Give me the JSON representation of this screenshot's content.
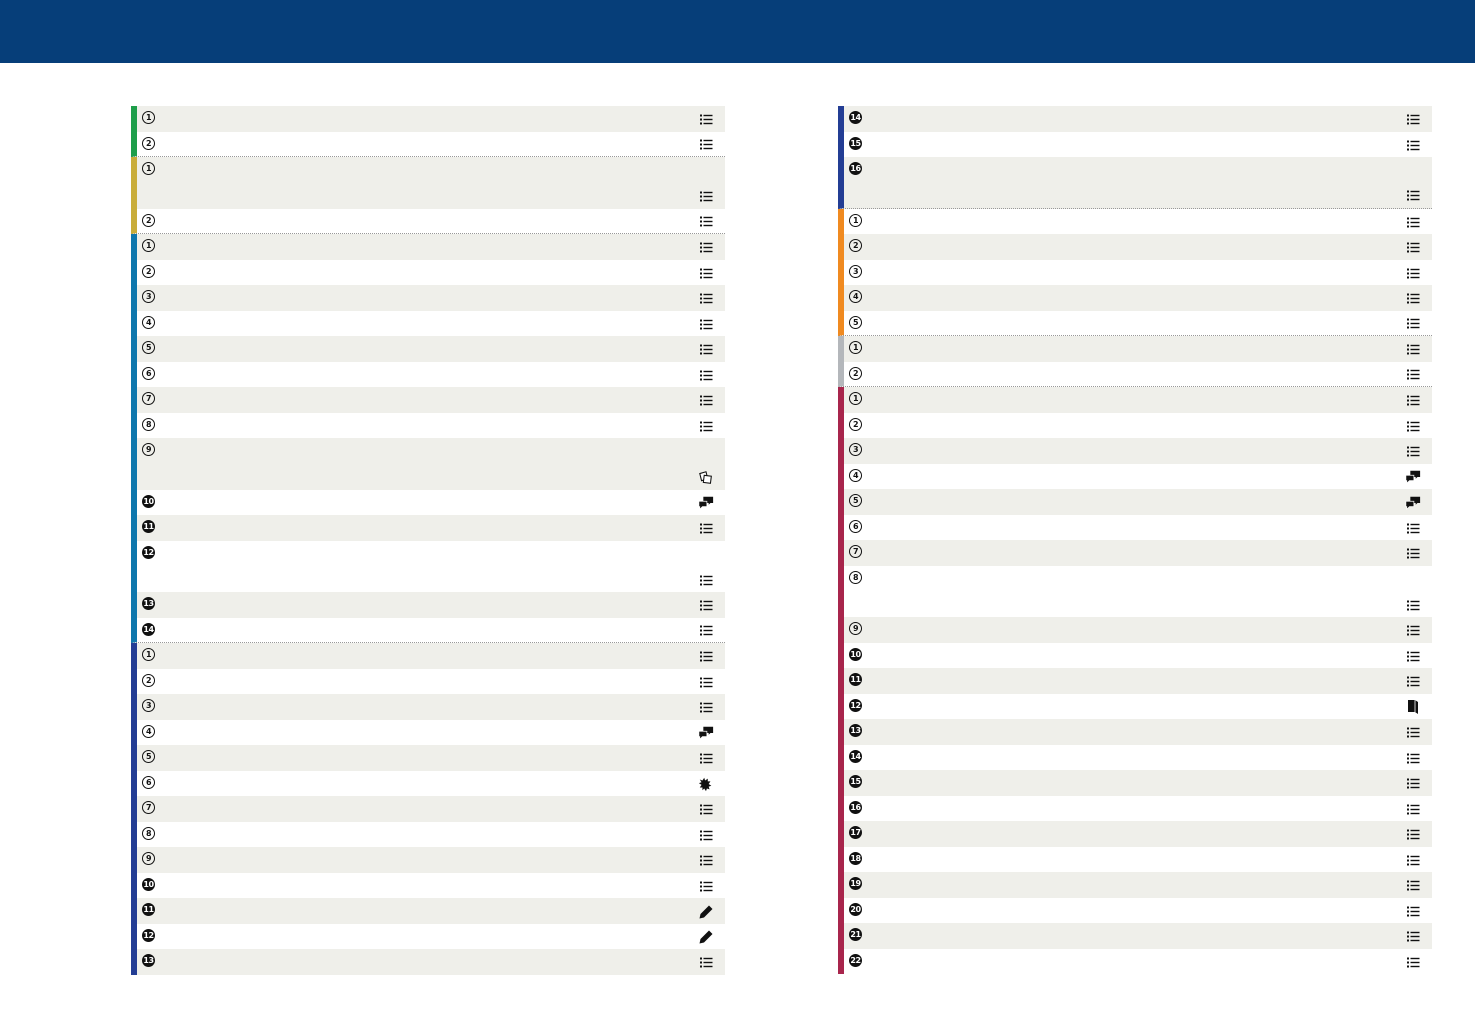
{
  "colors": {
    "header": "#063e79",
    "row_shade": "#efefea",
    "green": "#1e9e4a",
    "gold": "#c9ad3a",
    "teal": "#0e77ad",
    "navy": "#233d94",
    "orange": "#f08a20",
    "grey": "#b4b7bb",
    "crimson": "#a8254c"
  },
  "columns": [
    {
      "id": "left",
      "groups": [
        {
          "color": "green",
          "rows": [
            {
              "n": "1",
              "icon": "list-icon"
            },
            {
              "n": "2",
              "icon": "list-icon"
            }
          ]
        },
        {
          "color": "gold",
          "rows": [
            {
              "n": "1",
              "icon": "list-icon",
              "tall": true
            },
            {
              "n": "2",
              "icon": "list-icon"
            }
          ]
        },
        {
          "color": "teal",
          "rows": [
            {
              "n": "1",
              "icon": "list-icon"
            },
            {
              "n": "2",
              "icon": "list-icon"
            },
            {
              "n": "3",
              "icon": "list-icon"
            },
            {
              "n": "4",
              "icon": "list-icon"
            },
            {
              "n": "5",
              "icon": "list-icon"
            },
            {
              "n": "6",
              "icon": "list-icon"
            },
            {
              "n": "7",
              "icon": "list-icon"
            },
            {
              "n": "8",
              "icon": "list-icon"
            },
            {
              "n": "9",
              "icon": "cards-icon",
              "tall": true
            },
            {
              "n": "10",
              "icon": "speech-bubbles-icon",
              "filled": true
            },
            {
              "n": "11",
              "icon": "list-icon",
              "filled": true
            },
            {
              "n": "12",
              "icon": "list-icon",
              "filled": true,
              "tall": true
            },
            {
              "n": "13",
              "icon": "list-icon",
              "filled": true
            },
            {
              "n": "14",
              "icon": "list-icon",
              "filled": true
            }
          ]
        },
        {
          "color": "navy",
          "rows": [
            {
              "n": "1",
              "icon": "list-icon"
            },
            {
              "n": "2",
              "icon": "list-icon"
            },
            {
              "n": "3",
              "icon": "list-icon"
            },
            {
              "n": "4",
              "icon": "speech-bubbles-icon"
            },
            {
              "n": "5",
              "icon": "list-icon"
            },
            {
              "n": "6",
              "icon": "dragon-icon"
            },
            {
              "n": "7",
              "icon": "list-icon"
            },
            {
              "n": "8",
              "icon": "list-icon"
            },
            {
              "n": "9",
              "icon": "list-icon"
            },
            {
              "n": "10",
              "icon": "list-icon",
              "filled": true
            },
            {
              "n": "11",
              "icon": "pencil-icon",
              "filled": true
            },
            {
              "n": "12",
              "icon": "pencil-icon",
              "filled": true
            },
            {
              "n": "13",
              "icon": "list-icon",
              "filled": true
            }
          ]
        }
      ]
    },
    {
      "id": "right",
      "groups": [
        {
          "color": "navy",
          "rows": [
            {
              "n": "14",
              "icon": "list-icon",
              "filled": true
            },
            {
              "n": "15",
              "icon": "list-icon",
              "filled": true
            },
            {
              "n": "16",
              "icon": "list-icon",
              "filled": true,
              "tall": true
            }
          ]
        },
        {
          "color": "orange",
          "rows": [
            {
              "n": "1",
              "icon": "list-icon"
            },
            {
              "n": "2",
              "icon": "list-icon"
            },
            {
              "n": "3",
              "icon": "list-icon"
            },
            {
              "n": "4",
              "icon": "list-icon"
            },
            {
              "n": "5",
              "icon": "list-icon"
            }
          ]
        },
        {
          "color": "grey",
          "rows": [
            {
              "n": "1",
              "icon": "list-icon"
            },
            {
              "n": "2",
              "icon": "list-icon"
            }
          ]
        },
        {
          "color": "crimson",
          "rows": [
            {
              "n": "1",
              "icon": "list-icon"
            },
            {
              "n": "2",
              "icon": "list-icon"
            },
            {
              "n": "3",
              "icon": "list-icon"
            },
            {
              "n": "4",
              "icon": "speech-bubbles-icon"
            },
            {
              "n": "5",
              "icon": "speech-bubbles-icon"
            },
            {
              "n": "6",
              "icon": "list-icon"
            },
            {
              "n": "7",
              "icon": "list-icon"
            },
            {
              "n": "8",
              "icon": "list-icon",
              "tall": true
            },
            {
              "n": "9",
              "icon": "list-icon"
            },
            {
              "n": "10",
              "icon": "list-icon",
              "filled": true
            },
            {
              "n": "11",
              "icon": "list-icon",
              "filled": true
            },
            {
              "n": "12",
              "icon": "book-icon",
              "filled": true
            },
            {
              "n": "13",
              "icon": "list-icon",
              "filled": true
            },
            {
              "n": "14",
              "icon": "list-icon",
              "filled": true
            },
            {
              "n": "15",
              "icon": "list-icon",
              "filled": true
            },
            {
              "n": "16",
              "icon": "list-icon",
              "filled": true
            },
            {
              "n": "17",
              "icon": "list-icon",
              "filled": true
            },
            {
              "n": "18",
              "icon": "list-icon",
              "filled": true
            },
            {
              "n": "19",
              "icon": "list-icon",
              "filled": true
            },
            {
              "n": "20",
              "icon": "list-icon",
              "filled": true
            },
            {
              "n": "21",
              "icon": "list-icon",
              "filled": true
            },
            {
              "n": "22",
              "icon": "list-icon",
              "filled": true
            }
          ]
        }
      ]
    }
  ]
}
